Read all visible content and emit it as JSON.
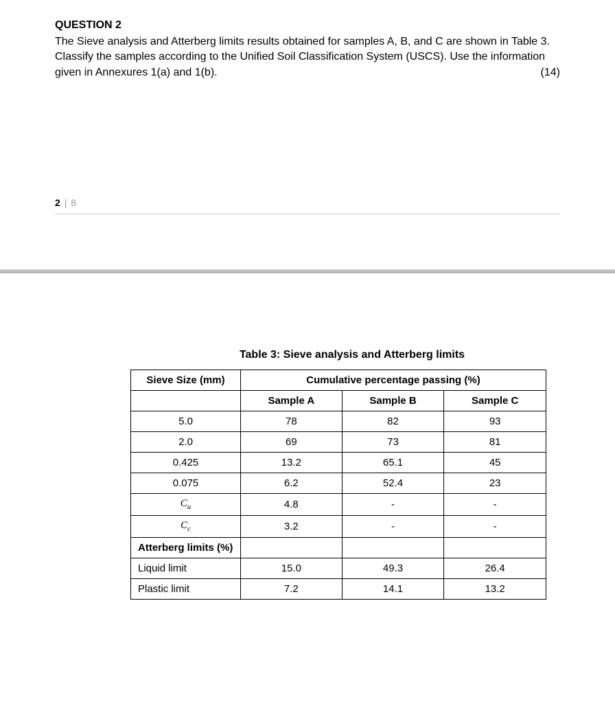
{
  "question": {
    "title": "QUESTION 2",
    "text": "The Sieve analysis and Atterberg limits results obtained for samples A, B, and C are shown in Table 3. Classify the samples according to the Unified Soil Classification System (USCS). Use the information given in Annexures 1(a) and 1(b).",
    "marks": "(14)"
  },
  "pagination": {
    "current": "2",
    "separator": "|",
    "total": "8"
  },
  "table": {
    "title": "Table 3: Sieve analysis and Atterberg limits",
    "header_left": "Sieve Size (mm)",
    "header_right": "Cumulative percentage passing (%)",
    "columns": [
      "Sample A",
      "Sample B",
      "Sample C"
    ],
    "rows": [
      {
        "label": "5.0",
        "a": "78",
        "b": "82",
        "c": "93"
      },
      {
        "label": "2.0",
        "a": "69",
        "b": "73",
        "c": "81"
      },
      {
        "label": "0.425",
        "a": "13.2",
        "b": "65.1",
        "c": "45"
      },
      {
        "label": "0.075",
        "a": "6.2",
        "b": "52.4",
        "c": "23"
      }
    ],
    "cu": {
      "label_base": "C",
      "label_sub": "u",
      "a": "4.8",
      "b": "-",
      "c": "-"
    },
    "cc": {
      "label_base": "C",
      "label_sub": "c",
      "a": "3.2",
      "b": "-",
      "c": "-"
    },
    "atterberg_label": "Atterberg limits (%)",
    "liquid": {
      "label": "Liquid limit",
      "a": "15.0",
      "b": "49.3",
      "c": "26.4"
    },
    "plastic": {
      "label": "Plastic limit",
      "a": "7.2",
      "b": "14.1",
      "c": "13.2"
    }
  },
  "colors": {
    "text": "#000000",
    "background": "#ffffff",
    "border": "#000000",
    "page_muted": "#999999",
    "divider": "#c0c0c0"
  },
  "typography": {
    "body_fontsize": 16,
    "table_fontsize": 15,
    "font_family": "Arial"
  }
}
